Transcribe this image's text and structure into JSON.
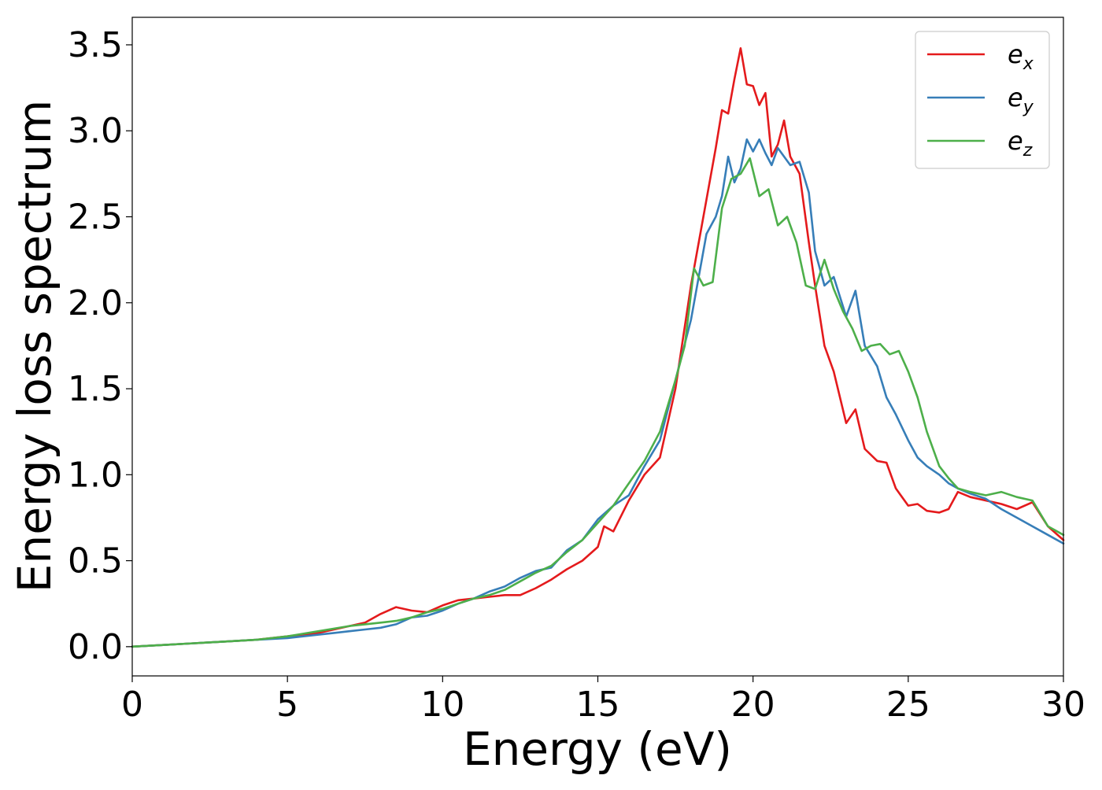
{
  "chart_data": {
    "type": "line",
    "title": "",
    "xlabel": "Energy (eV)",
    "ylabel": "Energy loss spectrum",
    "xlim": [
      0,
      30
    ],
    "ylim": [
      -0.17,
      3.66
    ],
    "xticks": [
      0,
      5,
      10,
      15,
      20,
      25,
      30
    ],
    "xtick_labels": [
      "0",
      "5",
      "10",
      "15",
      "20",
      "25",
      "30"
    ],
    "yticks": [
      0.0,
      0.5,
      1.0,
      1.5,
      2.0,
      2.5,
      3.0,
      3.5
    ],
    "ytick_labels": [
      "0.0",
      "0.5",
      "1.0",
      "1.5",
      "2.0",
      "2.5",
      "3.0",
      "3.5"
    ],
    "grid": false,
    "legend_position": "top-right",
    "series": [
      {
        "name": "e_x",
        "base": "e",
        "sub": "x",
        "color": "#e41a1c",
        "x": [
          0,
          1,
          2,
          3,
          4,
          5,
          6,
          7,
          7.5,
          8,
          8.5,
          9,
          9.5,
          10,
          10.5,
          11,
          11.5,
          12,
          12.5,
          13,
          13.5,
          14,
          14.5,
          15,
          15.2,
          15.5,
          16,
          16.5,
          17,
          17.5,
          18,
          18.5,
          18.8,
          19,
          19.2,
          19.4,
          19.6,
          19.8,
          20,
          20.2,
          20.4,
          20.6,
          20.8,
          21,
          21.2,
          21.5,
          21.8,
          22,
          22.3,
          22.6,
          23,
          23.3,
          23.6,
          24,
          24.3,
          24.6,
          25,
          25.3,
          25.6,
          26,
          26.3,
          26.6,
          27,
          27.5,
          28,
          28.5,
          29,
          29.5,
          30
        ],
        "y": [
          0,
          0.01,
          0.02,
          0.03,
          0.04,
          0.06,
          0.08,
          0.12,
          0.14,
          0.19,
          0.23,
          0.21,
          0.2,
          0.24,
          0.27,
          0.28,
          0.29,
          0.3,
          0.3,
          0.34,
          0.39,
          0.45,
          0.5,
          0.58,
          0.7,
          0.67,
          0.85,
          1.0,
          1.1,
          1.5,
          2.1,
          2.6,
          2.9,
          3.12,
          3.1,
          3.3,
          3.48,
          3.27,
          3.26,
          3.15,
          3.22,
          2.85,
          2.92,
          3.06,
          2.85,
          2.75,
          2.35,
          2.1,
          1.75,
          1.6,
          1.3,
          1.38,
          1.15,
          1.08,
          1.07,
          0.92,
          0.82,
          0.83,
          0.79,
          0.78,
          0.8,
          0.9,
          0.87,
          0.85,
          0.83,
          0.8,
          0.84,
          0.7,
          0.62
        ]
      },
      {
        "name": "e_y",
        "base": "e",
        "sub": "y",
        "color": "#377eb8",
        "x": [
          0,
          1,
          2,
          3,
          4,
          5,
          6,
          6.5,
          7,
          7.5,
          8,
          8.5,
          9,
          9.5,
          10,
          10.5,
          11,
          11.5,
          12,
          12.5,
          13,
          13.5,
          14,
          14.5,
          15,
          15.5,
          16,
          16.5,
          17,
          17.5,
          18,
          18.5,
          18.8,
          19,
          19.2,
          19.4,
          19.6,
          19.8,
          20,
          20.2,
          20.4,
          20.6,
          20.8,
          21,
          21.2,
          21.5,
          21.8,
          22,
          22.3,
          22.6,
          23,
          23.3,
          23.6,
          24,
          24.3,
          24.6,
          25,
          25.3,
          25.6,
          26,
          26.3,
          26.6,
          27,
          27.5,
          28,
          28.5,
          29,
          29.5,
          30
        ],
        "y": [
          0,
          0.01,
          0.02,
          0.03,
          0.04,
          0.05,
          0.07,
          0.08,
          0.09,
          0.1,
          0.11,
          0.13,
          0.17,
          0.18,
          0.21,
          0.25,
          0.28,
          0.32,
          0.35,
          0.4,
          0.44,
          0.46,
          0.56,
          0.62,
          0.74,
          0.82,
          0.88,
          1.05,
          1.2,
          1.55,
          1.9,
          2.4,
          2.5,
          2.62,
          2.85,
          2.7,
          2.78,
          2.95,
          2.88,
          2.95,
          2.87,
          2.8,
          2.9,
          2.85,
          2.8,
          2.82,
          2.64,
          2.3,
          2.1,
          2.15,
          1.92,
          2.07,
          1.75,
          1.63,
          1.45,
          1.35,
          1.2,
          1.1,
          1.05,
          1.0,
          0.95,
          0.92,
          0.89,
          0.86,
          0.8,
          0.75,
          0.7,
          0.65,
          0.6
        ]
      },
      {
        "name": "e_z",
        "base": "e",
        "sub": "z",
        "color": "#4daf4a",
        "x": [
          0,
          1,
          2,
          3,
          4,
          5,
          6,
          7,
          7.5,
          8,
          8.5,
          9,
          9.5,
          10,
          10.5,
          11,
          11.5,
          12,
          12.5,
          13,
          13.5,
          14,
          14.5,
          15,
          15.5,
          16,
          16.5,
          17,
          17.5,
          17.8,
          18.1,
          18.4,
          18.7,
          19,
          19.3,
          19.6,
          19.9,
          20.2,
          20.5,
          20.8,
          21.1,
          21.4,
          21.7,
          22,
          22.3,
          22.6,
          22.9,
          23.2,
          23.5,
          23.8,
          24.1,
          24.4,
          24.7,
          25,
          25.3,
          25.6,
          26,
          26.3,
          26.6,
          27,
          27.5,
          28,
          28.5,
          29,
          29.5,
          30
        ],
        "y": [
          0,
          0.01,
          0.02,
          0.03,
          0.04,
          0.06,
          0.09,
          0.12,
          0.13,
          0.14,
          0.15,
          0.17,
          0.2,
          0.22,
          0.25,
          0.28,
          0.3,
          0.33,
          0.38,
          0.43,
          0.47,
          0.55,
          0.62,
          0.72,
          0.82,
          0.95,
          1.08,
          1.25,
          1.55,
          1.75,
          2.2,
          2.1,
          2.12,
          2.55,
          2.72,
          2.75,
          2.84,
          2.62,
          2.66,
          2.45,
          2.5,
          2.35,
          2.1,
          2.08,
          2.25,
          2.08,
          1.95,
          1.85,
          1.72,
          1.75,
          1.76,
          1.7,
          1.72,
          1.6,
          1.45,
          1.25,
          1.05,
          0.98,
          0.92,
          0.9,
          0.88,
          0.9,
          0.87,
          0.85,
          0.7,
          0.65
        ]
      }
    ]
  }
}
